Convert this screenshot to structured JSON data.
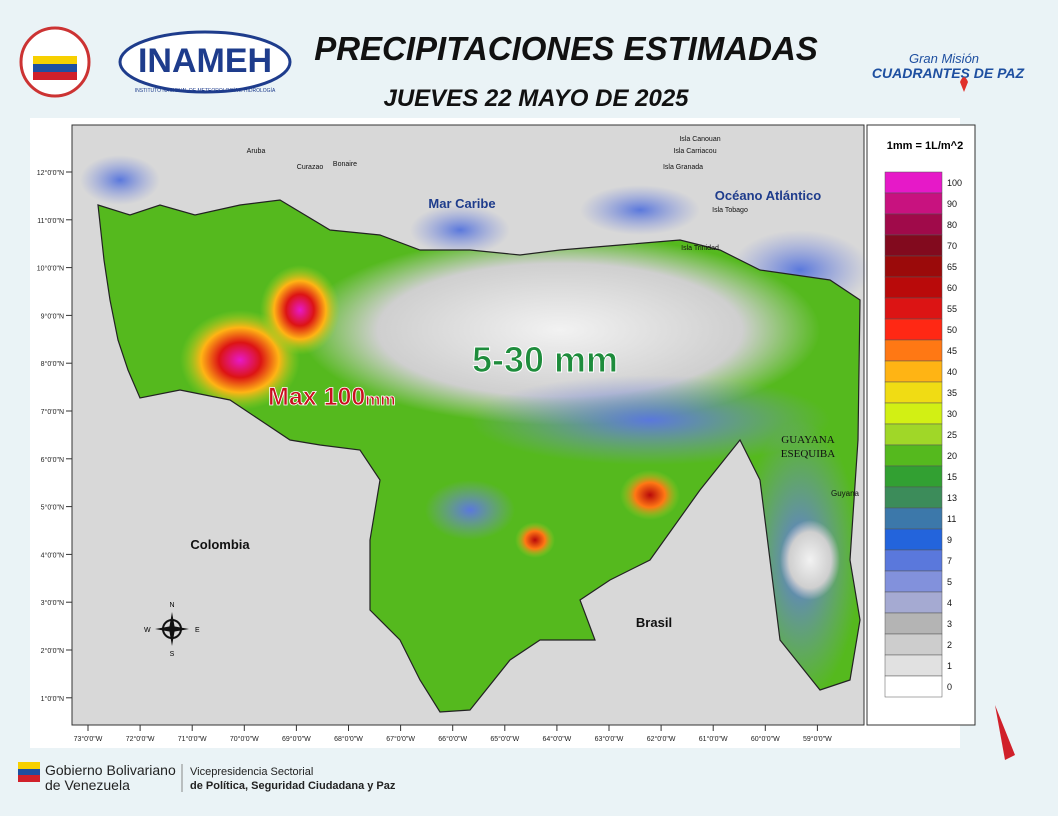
{
  "header": {
    "title": "PRECIPITACIONES ESTIMADAS",
    "date": "JUEVES 22 MAYO DE 2025",
    "logo_left": "INAMEH",
    "logo_left_sub": "INSTITUTO NACIONAL DE METEOROLOGÍA E HIDROLOGÍA",
    "logo_right_top": "Gran Misión",
    "logo_right": "CUADRANTES DE PAZ"
  },
  "map": {
    "lon_ticks": [
      "73°0'0\"W",
      "72°0'0\"W",
      "71°0'0\"W",
      "70°0'0\"W",
      "69°0'0\"W",
      "68°0'0\"W",
      "67°0'0\"W",
      "66°0'0\"W",
      "65°0'0\"W",
      "64°0'0\"W",
      "63°0'0\"W",
      "62°0'0\"W",
      "61°0'0\"W",
      "60°0'0\"W",
      "59°0'0\"W"
    ],
    "lat_ticks": [
      "12°0'0\"N",
      "11°0'0\"N",
      "10°0'0\"N",
      "9°0'0\"N",
      "8°0'0\"N",
      "7°0'0\"N",
      "6°0'0\"N",
      "5°0'0\"N",
      "4°0'0\"N",
      "3°0'0\"N",
      "2°0'0\"N",
      "1°0'0\"N"
    ],
    "places": [
      "Mar Caribe",
      "Océano Atlántico",
      "Colombia",
      "Brasil",
      "Guyana",
      "Aruba",
      "Curazao",
      "Bonaire",
      "Isla Canouan",
      "Isla Carriacou",
      "Isla Granada",
      "Isla Tobago",
      "Isla Trinidad"
    ],
    "esequibo": [
      "GUAYANA",
      "ESEQUIBA"
    ],
    "annotation_range": "5-30 mm",
    "annotation_max": "Max 100",
    "annotation_max_unit": "mm",
    "compass": [
      "N",
      "S",
      "E",
      "W"
    ]
  },
  "legend": {
    "unit": "1mm = 1L/m^2",
    "entries": [
      {
        "value": 100,
        "color": "#e619c8"
      },
      {
        "value": 90,
        "color": "#c8127f"
      },
      {
        "value": 80,
        "color": "#a00a4a"
      },
      {
        "value": 70,
        "color": "#820a1e"
      },
      {
        "value": 65,
        "color": "#9b0a0a"
      },
      {
        "value": 60,
        "color": "#b90a0a"
      },
      {
        "value": 55,
        "color": "#dc1414"
      },
      {
        "value": 50,
        "color": "#ff2814"
      },
      {
        "value": 45,
        "color": "#ff7814"
      },
      {
        "value": 40,
        "color": "#ffb414"
      },
      {
        "value": 35,
        "color": "#f0dc14"
      },
      {
        "value": 30,
        "color": "#d2f014"
      },
      {
        "value": 25,
        "color": "#a0d728"
      },
      {
        "value": 20,
        "color": "#55b91e"
      },
      {
        "value": 15,
        "color": "#32a032"
      },
      {
        "value": 13,
        "color": "#3c8c5a"
      },
      {
        "value": 11,
        "color": "#3c78aa"
      },
      {
        "value": 9,
        "color": "#2364dc"
      },
      {
        "value": 7,
        "color": "#5a78dc"
      },
      {
        "value": 5,
        "color": "#8291dc"
      },
      {
        "value": 4,
        "color": "#a5aad2"
      },
      {
        "value": 3,
        "color": "#b4b4b4"
      },
      {
        "value": 2,
        "color": "#cdcdcd"
      },
      {
        "value": 1,
        "color": "#e1e1e1"
      },
      {
        "value": 0,
        "color": "#ffffff"
      }
    ]
  },
  "footer": {
    "gov_1": "Gobierno Bolivariano",
    "gov_2": "de Venezuela",
    "vice_1": "Vicepresidencia Sectorial",
    "vice_2": "de Política, Seguridad Ciudadana y Paz"
  }
}
